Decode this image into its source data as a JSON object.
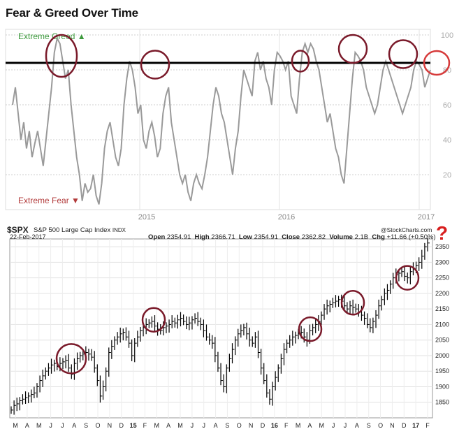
{
  "title": "Fear & Greed Over Time",
  "fear_greed": {
    "label_greed": "Extreme Greed",
    "label_fear": "Extreme Fear",
    "greed_color": "#3d9a3d",
    "fear_color": "#b23b3b",
    "threshold": 84
  },
  "spx_header": {
    "symbol": "$SPX",
    "name": "S&P 500 Large Cap Index",
    "exchange": "INDX",
    "date": "22-Feb-2017",
    "open_label": "Open",
    "open": "2354.91",
    "high_label": "High",
    "high": "2366.71",
    "low_label": "Low",
    "low": "2354.91",
    "close_label": "Close",
    "close": "2362.82",
    "volume_label": "Volume",
    "volume": "2.1B",
    "chg_label": "Chg",
    "chg": "+11.66 (+0.50%)",
    "watermark": "@StockCharts.com"
  },
  "annotation_question": "?",
  "chart_data": [
    {
      "type": "line",
      "y_ticks": [
        20,
        40,
        60,
        80,
        100
      ],
      "ylim": [
        0,
        100
      ],
      "x_ticks": [
        "2015",
        "2016",
        "2017"
      ],
      "x": [
        0,
        4,
        8,
        12,
        16,
        20,
        24,
        28,
        32,
        36,
        40,
        44,
        48,
        52,
        56,
        60,
        64,
        68,
        72,
        76,
        80,
        84,
        88,
        92,
        96,
        100,
        104,
        108,
        112,
        116,
        120,
        124,
        128,
        132,
        136,
        140,
        144,
        148,
        152,
        156,
        160,
        164,
        168,
        172,
        176,
        180,
        184,
        188,
        192,
        196,
        200,
        204,
        208,
        212,
        216,
        220,
        224,
        228,
        232,
        236,
        240,
        244,
        248,
        252,
        256,
        260,
        264,
        268,
        272,
        276,
        280,
        284,
        288,
        292,
        296,
        300,
        304,
        308,
        312,
        316,
        320,
        324,
        328,
        332,
        336,
        340,
        344,
        348,
        352,
        356,
        360,
        364,
        368,
        372,
        376,
        380,
        384,
        388,
        392,
        396,
        400,
        404,
        408,
        412,
        416,
        420,
        424,
        428,
        432,
        436,
        440,
        444,
        448,
        452,
        456,
        460,
        464,
        468,
        472,
        476,
        480,
        484,
        488,
        492,
        496,
        500,
        504,
        508,
        512,
        516,
        520,
        524,
        528,
        532,
        536,
        540,
        544,
        548,
        552,
        556,
        560,
        564,
        568,
        572,
        576,
        580,
        584,
        588,
        592,
        596,
        600
      ],
      "series": [
        {
          "color": "#999999",
          "values": [
            60,
            70,
            55,
            40,
            50,
            35,
            45,
            30,
            38,
            45,
            35,
            25,
            40,
            55,
            70,
            90,
            98,
            95,
            85,
            75,
            80,
            60,
            45,
            30,
            20,
            5,
            15,
            10,
            12,
            20,
            8,
            3,
            15,
            35,
            45,
            50,
            40,
            30,
            25,
            35,
            60,
            75,
            85,
            80,
            70,
            55,
            60,
            40,
            35,
            45,
            50,
            42,
            30,
            35,
            55,
            65,
            70,
            50,
            40,
            30,
            20,
            15,
            20,
            10,
            5,
            15,
            20,
            15,
            12,
            20,
            30,
            45,
            60,
            70,
            65,
            55,
            50,
            40,
            30,
            20,
            35,
            45,
            65,
            80,
            75,
            70,
            65,
            85,
            90,
            80,
            85,
            75,
            70,
            60,
            80,
            90,
            88,
            85,
            80,
            85,
            65,
            60,
            55,
            75,
            90,
            95,
            90,
            95,
            92,
            85,
            80,
            70,
            60,
            50,
            55,
            45,
            35,
            30,
            20,
            15,
            35,
            55,
            75,
            90,
            88,
            85,
            80,
            70,
            65,
            60,
            55,
            60,
            70,
            80,
            85,
            80,
            75,
            70,
            65,
            60,
            55,
            60,
            65,
            70,
            80,
            85,
            83,
            80,
            70,
            75,
            80
          ]
        }
      ],
      "threshold_line": 84
    },
    {
      "type": "bar",
      "name": "$SPX",
      "y_ticks": [
        1850,
        1900,
        1950,
        2000,
        2050,
        2100,
        2150,
        2200,
        2250,
        2300,
        2350
      ],
      "ylim": [
        1800,
        2375
      ],
      "x_ticks": [
        "M",
        "A",
        "M",
        "J",
        "J",
        "A",
        "S",
        "O",
        "N",
        "D",
        "15",
        "F",
        "M",
        "A",
        "M",
        "J",
        "J",
        "A",
        "S",
        "O",
        "N",
        "D",
        "16",
        "F",
        "M",
        "A",
        "M",
        "J",
        "J",
        "A",
        "S",
        "O",
        "N",
        "D",
        "17",
        "F"
      ],
      "values": [
        1825,
        1840,
        1845,
        1855,
        1860,
        1865,
        1870,
        1875,
        1880,
        1900,
        1920,
        1935,
        1950,
        1960,
        1970,
        1975,
        1965,
        1975,
        1980,
        1985,
        1960,
        1940,
        1975,
        1990,
        2000,
        2005,
        2010,
        2005,
        1995,
        1960,
        1920,
        1870,
        1900,
        1950,
        2010,
        2030,
        2050,
        2060,
        2070,
        2075,
        2060,
        2040,
        2000,
        2040,
        2060,
        2080,
        2090,
        2100,
        2105,
        2110,
        2095,
        2085,
        2080,
        2090,
        2095,
        2100,
        2110,
        2105,
        2115,
        2120,
        2110,
        2100,
        2105,
        2115,
        2120,
        2110,
        2100,
        2080,
        2060,
        2050,
        2040,
        2000,
        1960,
        1920,
        1900,
        1960,
        1990,
        2020,
        2050,
        2070,
        2080,
        2090,
        2070,
        2050,
        2040,
        2060,
        2010,
        1960,
        1920,
        1880,
        1860,
        1900,
        1930,
        1960,
        1990,
        2020,
        2040,
        2050,
        2060,
        2065,
        2070,
        2075,
        2060,
        2050,
        2080,
        2090,
        2100,
        2110,
        2130,
        2150,
        2160,
        2165,
        2170,
        2175,
        2180,
        2175,
        2160,
        2150,
        2160,
        2155,
        2150,
        2140,
        2130,
        2120,
        2100,
        2090,
        2110,
        2130,
        2160,
        2180,
        2200,
        2210,
        2230,
        2250,
        2260,
        2265,
        2270,
        2255,
        2250,
        2270,
        2280,
        2290,
        2300,
        2320,
        2350,
        2362
      ]
    }
  ],
  "circles": {
    "fear_greed": [
      {
        "x": 20,
        "y": 88
      },
      {
        "x": 80,
        "y": 83
      },
      {
        "x": 168,
        "y": 85
      },
      {
        "x": 200,
        "y": 92
      },
      {
        "x": 230,
        "y": 89
      },
      {
        "x": 256,
        "y": 84
      }
    ],
    "spx": [
      {
        "x": 22,
        "y": 1990
      },
      {
        "x": 52,
        "y": 2115
      },
      {
        "x": 108,
        "y": 2085
      },
      {
        "x": 128,
        "y": 2170
      },
      {
        "x": 154,
        "y": 2250
      }
    ]
  }
}
